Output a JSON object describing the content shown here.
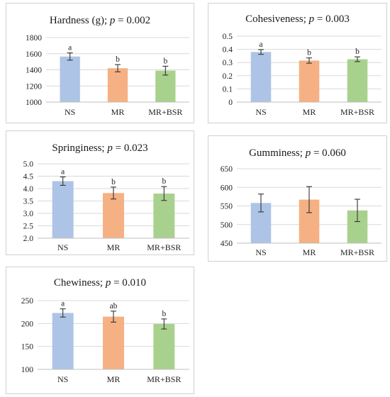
{
  "colors": {
    "NS": "#aec4e6",
    "MR": "#f5b183",
    "MR+BSR": "#a9d18e"
  },
  "chart_data": [
    {
      "type": "bar",
      "title_main": "Hardness (g); ",
      "title_p_italic": "p",
      "title_p_value": " = 0.002",
      "categories": [
        "NS",
        "MR",
        "MR+BSR"
      ],
      "values": [
        1565,
        1420,
        1390
      ],
      "errors": [
        45,
        45,
        55
      ],
      "significance": [
        "a",
        "b",
        "b"
      ],
      "ylim": [
        1000,
        1800
      ],
      "yticks": [
        "1000",
        "1200",
        "1400",
        "1600",
        "1800"
      ],
      "grid": true
    },
    {
      "type": "bar",
      "title_main": "Cohesiveness; ",
      "title_p_italic": "p",
      "title_p_value": " = 0.003",
      "categories": [
        "NS",
        "MR",
        "MR+BSR"
      ],
      "values": [
        0.38,
        0.315,
        0.325
      ],
      "errors": [
        0.018,
        0.02,
        0.018
      ],
      "significance": [
        "a",
        "b",
        "b"
      ],
      "ylim": [
        0,
        0.5
      ],
      "yticks": [
        "0",
        "0.1",
        "0.2",
        "0.3",
        "0.4",
        "0.5"
      ],
      "grid": true
    },
    {
      "type": "bar",
      "title_main": "Springiness; ",
      "title_p_italic": "p",
      "title_p_value": " = 0.023",
      "categories": [
        "NS",
        "MR",
        "MR+BSR"
      ],
      "values": [
        4.3,
        3.82,
        3.8
      ],
      "errors": [
        0.17,
        0.24,
        0.28
      ],
      "significance": [
        "a",
        "b",
        "b"
      ],
      "ylim": [
        2.0,
        5.0
      ],
      "yticks": [
        "2.0",
        "2.5",
        "3.0",
        "3.5",
        "4.0",
        "4.5",
        "5.0"
      ],
      "grid": true
    },
    {
      "type": "bar",
      "title_main": "Gumminess; ",
      "title_p_italic": "p",
      "title_p_value": " = 0.060",
      "categories": [
        "NS",
        "MR",
        "MR+BSR"
      ],
      "values": [
        558,
        567,
        538
      ],
      "errors": [
        24,
        35,
        30
      ],
      "significance": [
        "",
        "",
        ""
      ],
      "ylim": [
        450,
        650
      ],
      "yticks": [
        "450",
        "500",
        "550",
        "600",
        "650"
      ],
      "grid": true
    },
    {
      "type": "bar",
      "title_main": "Chewiness; ",
      "title_p_italic": "p",
      "title_p_value": " = 0.010",
      "categories": [
        "NS",
        "MR",
        "MR+BSR"
      ],
      "values": [
        223,
        215,
        199
      ],
      "errors": [
        9,
        12,
        11
      ],
      "significance": [
        "a",
        "ab",
        "b"
      ],
      "ylim": [
        100,
        250
      ],
      "yticks": [
        "100",
        "150",
        "200",
        "250"
      ],
      "grid": true
    }
  ]
}
